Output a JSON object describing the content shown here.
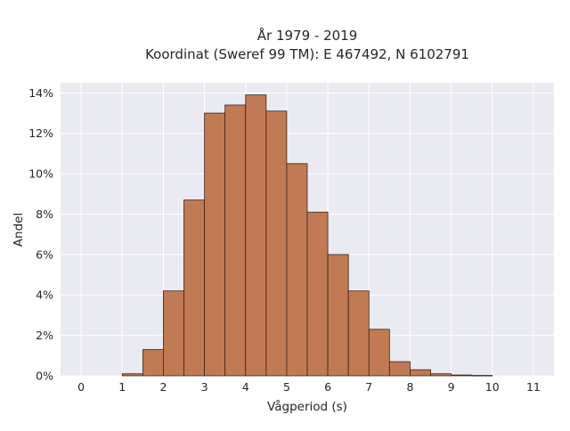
{
  "chart_data": {
    "type": "bar",
    "title": "År 1979 - 2019",
    "subtitle": "Koordinat (Sweref 99 TM): E 467492, N 6102791",
    "xlabel": "Vågperiod (s)",
    "ylabel": "Andel",
    "xlim": [
      -0.5,
      11.5
    ],
    "ylim": [
      0,
      14.5
    ],
    "x_ticks": [
      0,
      1,
      2,
      3,
      4,
      5,
      6,
      7,
      8,
      9,
      10,
      11
    ],
    "x_tick_labels": [
      "0",
      "1",
      "2",
      "3",
      "4",
      "5",
      "6",
      "7",
      "8",
      "9",
      "10",
      "11"
    ],
    "y_ticks": [
      0,
      2,
      4,
      6,
      8,
      10,
      12,
      14
    ],
    "y_tick_labels": [
      "0%",
      "2%",
      "4%",
      "6%",
      "8%",
      "10%",
      "12%",
      "14%"
    ],
    "bin_width": 0.5,
    "bins": [
      {
        "start": 1.0,
        "value": 0.1
      },
      {
        "start": 1.5,
        "value": 1.3
      },
      {
        "start": 2.0,
        "value": 4.2
      },
      {
        "start": 2.5,
        "value": 8.7
      },
      {
        "start": 3.0,
        "value": 13.0
      },
      {
        "start": 3.5,
        "value": 13.4
      },
      {
        "start": 4.0,
        "value": 13.9
      },
      {
        "start": 4.5,
        "value": 13.1
      },
      {
        "start": 5.0,
        "value": 10.5
      },
      {
        "start": 5.5,
        "value": 8.1
      },
      {
        "start": 6.0,
        "value": 6.0
      },
      {
        "start": 6.5,
        "value": 4.2
      },
      {
        "start": 7.0,
        "value": 2.3
      },
      {
        "start": 7.5,
        "value": 0.7
      },
      {
        "start": 8.0,
        "value": 0.3
      },
      {
        "start": 8.5,
        "value": 0.1
      },
      {
        "start": 9.0,
        "value": 0.04
      },
      {
        "start": 9.5,
        "value": 0.02
      }
    ],
    "grid": true,
    "legend": "none",
    "colors": {
      "bar_fill": "#c07a54",
      "bar_edge": "#3d2416",
      "plot_background": "#eaeaf2",
      "grid": "#ffffff"
    }
  }
}
